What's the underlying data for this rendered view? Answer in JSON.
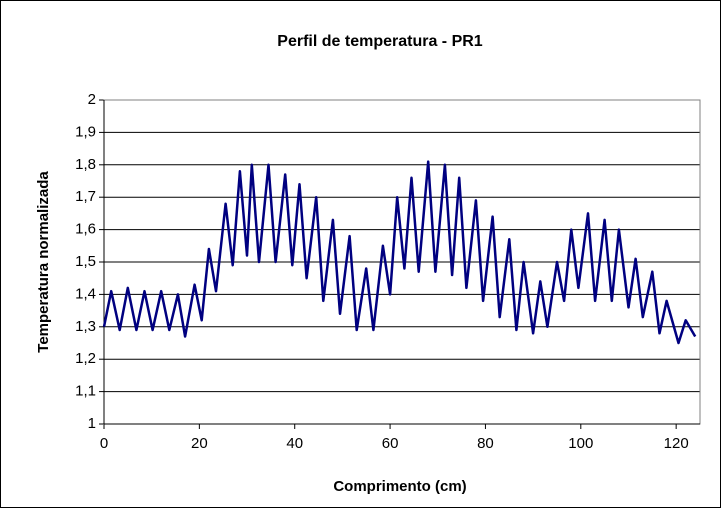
{
  "chart_data": {
    "type": "line",
    "title": "Perfil de temperatura - PR1",
    "xlabel": "Comprimento (cm)",
    "ylabel": "Temperatura normalizada",
    "color": "#000080",
    "grid": true,
    "xlim": [
      0,
      125
    ],
    "ylim": [
      1,
      2
    ],
    "xticks": [
      0,
      20,
      40,
      60,
      80,
      100,
      120
    ],
    "yticks": [
      1,
      {
        "value": 1.1,
        "label": "1,1"
      },
      {
        "value": 1.2,
        "label": "1,2"
      },
      {
        "value": 1.3,
        "label": "1,3"
      },
      {
        "value": 1.4,
        "label": "1,4"
      },
      {
        "value": 1.5,
        "label": "1,5"
      },
      {
        "value": 1.6,
        "label": "1,6"
      },
      {
        "value": 1.7,
        "label": "1,7"
      },
      {
        "value": 1.8,
        "label": "1,8"
      },
      {
        "value": 1.9,
        "label": "1,9"
      },
      2
    ],
    "x": [
      0,
      1.5,
      3.3,
      5,
      6.8,
      8.5,
      10.2,
      12,
      13.7,
      15.5,
      17,
      19,
      20.5,
      22,
      23.5,
      25.5,
      27,
      28.5,
      30,
      31,
      32.5,
      34.5,
      36,
      38,
      39.5,
      41,
      42.5,
      44.5,
      46,
      48,
      49.5,
      51.5,
      53,
      55,
      56.5,
      58.5,
      60,
      61.5,
      63,
      64.5,
      66,
      68,
      69.5,
      71.5,
      73,
      74.5,
      76,
      78,
      79.5,
      81.5,
      83,
      85,
      86.5,
      88,
      90,
      91.5,
      93,
      95,
      96.5,
      98,
      99.5,
      101.5,
      103,
      105,
      106.5,
      108,
      110,
      111.5,
      113,
      115,
      116.5,
      118,
      120.5,
      122,
      124
    ],
    "values": [
      1.3,
      1.41,
      1.29,
      1.42,
      1.29,
      1.41,
      1.29,
      1.41,
      1.29,
      1.4,
      1.27,
      1.43,
      1.32,
      1.54,
      1.41,
      1.68,
      1.49,
      1.78,
      1.52,
      1.8,
      1.5,
      1.8,
      1.5,
      1.77,
      1.49,
      1.74,
      1.45,
      1.7,
      1.38,
      1.63,
      1.34,
      1.58,
      1.29,
      1.48,
      1.29,
      1.55,
      1.4,
      1.7,
      1.48,
      1.76,
      1.47,
      1.81,
      1.47,
      1.8,
      1.46,
      1.76,
      1.42,
      1.69,
      1.38,
      1.64,
      1.33,
      1.57,
      1.29,
      1.5,
      1.28,
      1.44,
      1.3,
      1.5,
      1.38,
      1.6,
      1.42,
      1.65,
      1.38,
      1.63,
      1.38,
      1.6,
      1.36,
      1.51,
      1.33,
      1.47,
      1.28,
      1.38,
      1.25,
      1.32,
      1.27
    ]
  }
}
